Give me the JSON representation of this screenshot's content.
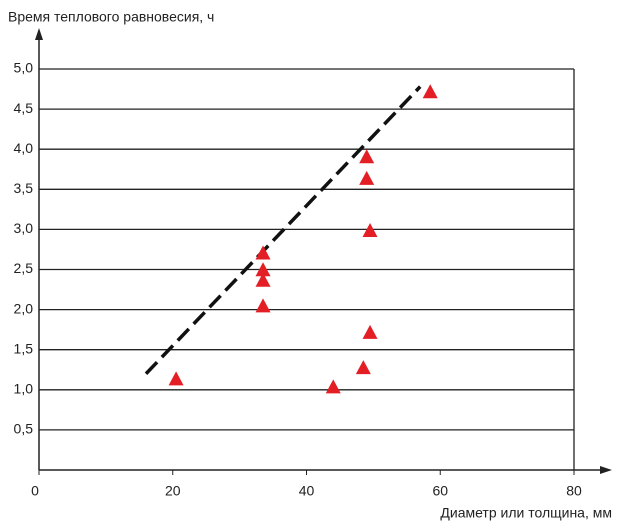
{
  "chart_data": {
    "type": "scatter",
    "ylabel": "Время теплового равновесия, ч",
    "xlabel": "Диаметр или толщина, мм",
    "x": [
      20.5,
      33.5,
      33.5,
      33.5,
      33.5,
      44,
      48.5,
      49,
      49,
      49.5,
      49.5,
      58.5
    ],
    "y": [
      1.13,
      2.7,
      2.49,
      2.36,
      2.04,
      1.03,
      1.27,
      3.9,
      3.63,
      2.98,
      1.71,
      4.71
    ],
    "color": "#e31e24",
    "trend_line": {
      "x": [
        16,
        57
      ],
      "y": [
        1.2,
        4.78
      ],
      "color": "#111111",
      "dashed": true
    },
    "xlim": [
      0,
      80
    ],
    "ylim": [
      0,
      5
    ],
    "xticks": [
      0,
      20,
      40,
      60,
      80
    ],
    "yticks": [
      {
        "value": 0.5,
        "label": "0,5"
      },
      {
        "value": 1,
        "label": "1,0"
      },
      {
        "value": 1.5,
        "label": "1,5"
      },
      {
        "value": 2,
        "label": "2,0"
      },
      {
        "value": 2.5,
        "label": "2,5"
      },
      {
        "value": 3,
        "label": "3,0"
      },
      {
        "value": 3.5,
        "label": "3,5"
      },
      {
        "value": 4,
        "label": "4,0"
      },
      {
        "value": 4.5,
        "label": "4,5"
      },
      {
        "value": 5,
        "label": "5,0"
      }
    ],
    "grid": true
  }
}
